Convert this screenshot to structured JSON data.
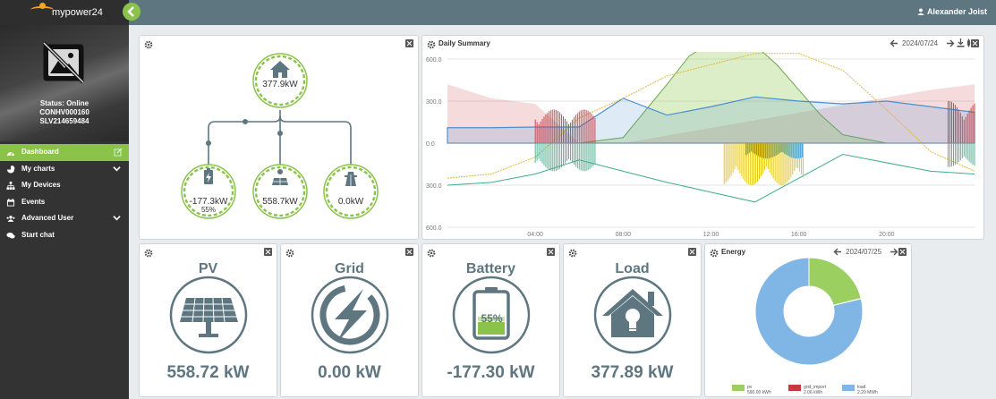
{
  "app": {
    "brand": "mypower24",
    "user": "Alexander Joist"
  },
  "sidebar": {
    "status": "Status: Online",
    "ids": [
      "CONHV000160",
      "SLV214659484"
    ],
    "items": [
      {
        "label": "Dashboard",
        "icon": "dashboard-icon",
        "active": true
      },
      {
        "label": "My charts",
        "icon": "pie-chart-icon",
        "expand": true
      },
      {
        "label": "My Devices",
        "icon": "sitemap-icon"
      },
      {
        "label": "Events",
        "icon": "calendar-icon"
      },
      {
        "label": "Advanced User",
        "icon": "users-icon",
        "expand": true
      },
      {
        "label": "Start chat",
        "icon": "chat-icon"
      }
    ]
  },
  "flow": {
    "load": "377.9kW",
    "battery": "-177.3kW",
    "battery_soc": "55%",
    "pv": "558.7kW",
    "grid": "0.0kW"
  },
  "daily_summary": {
    "title": "Daily Summary",
    "date": "2024/07/24",
    "icons": [
      "prev-arrow-icon",
      "next-arrow-icon",
      "download-icon",
      "settings-icon"
    ]
  },
  "tiles": {
    "pv": {
      "title": "PV",
      "value": "558.72 kW"
    },
    "grid": {
      "title": "Grid",
      "value": "0.00 kW"
    },
    "battery": {
      "title": "Battery",
      "value": "-177.30 kW",
      "soc": "55%"
    },
    "load": {
      "title": "Load",
      "value": "377.89 kW"
    }
  },
  "energy": {
    "title": "Energy",
    "date": "2024/07/25",
    "legend": [
      {
        "name": "pv",
        "value": "590.00 kWh",
        "color": "#9bcf5f"
      },
      {
        "name": "grid_import",
        "value": "2.06 kWh",
        "color": "#c9383d"
      },
      {
        "name": "load",
        "value": "2.20 MWh",
        "color": "#7fb6e6"
      }
    ]
  },
  "chart_data": [
    {
      "type": "area",
      "title": "Daily Summary",
      "x_ticks": [
        "04:00",
        "08:00",
        "12:00",
        "16:00",
        "20:00"
      ],
      "y_ticks": [
        "600.0",
        "300.0",
        "0.0",
        "300.0",
        "600.0"
      ],
      "ylim": [
        -600,
        600
      ],
      "grid": true,
      "series": [
        {
          "name": "load",
          "color": "#4a8fd0",
          "x": [
            0,
            2,
            4,
            6,
            8,
            10,
            12,
            14,
            16,
            18,
            20,
            22,
            24
          ],
          "values": [
            110,
            110,
            115,
            115,
            320,
            200,
            260,
            330,
            300,
            280,
            300,
            260,
            220
          ]
        },
        {
          "name": "pv",
          "color": "#9bcf5f",
          "x": [
            0,
            4,
            6,
            8,
            9,
            10,
            11,
            12,
            13,
            14,
            15,
            16,
            17,
            18,
            20,
            24
          ],
          "values": [
            0,
            0,
            0,
            40,
            230,
            420,
            620,
            720,
            760,
            700,
            560,
            380,
            200,
            60,
            0,
            0
          ]
        },
        {
          "name": "grid_import",
          "color": "#c9383d",
          "x": [
            0,
            2,
            4,
            6,
            8,
            22,
            24
          ],
          "values": [
            420,
            320,
            280,
            0,
            0,
            380,
            420
          ]
        },
        {
          "name": "battery",
          "color": "#3fae8a",
          "x": [
            0,
            2,
            4,
            6,
            8,
            10,
            12,
            14,
            16,
            18,
            22,
            24
          ],
          "values": [
            -300,
            -280,
            -220,
            -120,
            -200,
            -280,
            -350,
            -420,
            -250,
            -80,
            -200,
            -220
          ]
        },
        {
          "name": "soc",
          "color": "#e2b93b",
          "x": [
            0,
            2,
            4,
            6,
            8,
            10,
            12,
            14,
            16,
            18,
            20,
            22,
            24
          ],
          "values": [
            -250,
            -220,
            -100,
            180,
            320,
            480,
            560,
            640,
            640,
            520,
            240,
            -60,
            -200
          ]
        }
      ]
    },
    {
      "type": "pie",
      "title": "Energy",
      "labels": [
        "pv",
        "grid_import",
        "load"
      ],
      "values": [
        590.0,
        2.06,
        2200.0
      ],
      "colors": [
        "#9bcf5f",
        "#c9383d",
        "#7fb6e6"
      ]
    }
  ]
}
